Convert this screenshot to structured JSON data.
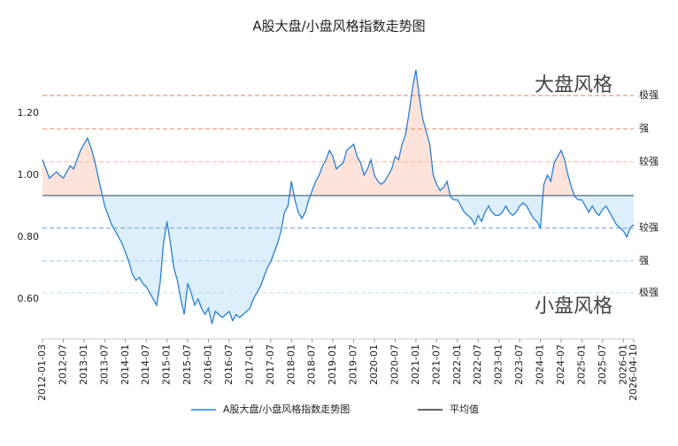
{
  "chart_data": {
    "type": "line",
    "title": "A股大盘/小盘风格指数走势图",
    "categories": [
      "2012-01-03",
      null,
      null,
      null,
      null,
      null,
      "2012-07",
      null,
      null,
      null,
      null,
      null,
      "2013-01",
      null,
      null,
      null,
      null,
      null,
      "2013-07",
      null,
      null,
      null,
      null,
      null,
      "2014-01",
      null,
      null,
      null,
      null,
      null,
      "2014-07",
      null,
      null,
      null,
      null,
      null,
      "2015-01",
      null,
      null,
      null,
      null,
      null,
      "2015-07",
      null,
      null,
      null,
      null,
      null,
      "2016-01",
      null,
      null,
      null,
      null,
      null,
      "2016-07",
      null,
      null,
      null,
      null,
      null,
      "2017-01",
      null,
      null,
      null,
      null,
      null,
      "2017-07",
      null,
      null,
      null,
      null,
      null,
      "2018-01",
      null,
      null,
      null,
      null,
      null,
      "2018-07",
      null,
      null,
      null,
      null,
      null,
      "2019-01",
      null,
      null,
      null,
      null,
      null,
      "2019-07",
      null,
      null,
      null,
      null,
      null,
      "2020-01",
      null,
      null,
      null,
      null,
      null,
      "2020-07",
      null,
      null,
      null,
      null,
      null,
      "2021-01",
      null,
      null,
      null,
      null,
      null,
      "2021-07",
      null,
      null,
      null,
      null,
      null,
      "2022-01",
      null,
      null,
      null,
      null,
      null,
      "2022-07",
      null,
      null,
      null,
      null,
      null,
      "2023-01",
      null,
      null,
      null,
      null,
      null,
      "2023-07",
      null,
      null,
      null,
      null,
      null,
      "2024-01",
      null,
      null,
      null,
      null,
      null,
      "2024-07",
      null,
      null,
      null,
      null,
      null,
      "2025-01",
      null,
      null,
      null,
      null,
      null,
      "2025-07",
      null,
      null,
      null,
      null,
      null,
      "2026-01",
      null,
      null,
      "2026-04-10"
    ],
    "series": [
      {
        "name": "A股大盘/小盘风格指数走势图",
        "color": "#2a7fd4",
        "values": [
          1.05,
          1.02,
          0.99,
          1.0,
          1.01,
          1.0,
          0.99,
          1.01,
          1.03,
          1.02,
          1.05,
          1.08,
          1.1,
          1.12,
          1.09,
          1.05,
          1.0,
          0.95,
          0.9,
          0.87,
          0.84,
          0.82,
          0.8,
          0.78,
          0.75,
          0.72,
          0.68,
          0.66,
          0.67,
          0.65,
          0.64,
          0.62,
          0.6,
          0.58,
          0.65,
          0.78,
          0.85,
          0.78,
          0.7,
          0.66,
          0.6,
          0.55,
          0.65,
          0.62,
          0.58,
          0.6,
          0.57,
          0.55,
          0.57,
          0.52,
          0.56,
          0.55,
          0.54,
          0.55,
          0.56,
          0.53,
          0.55,
          0.54,
          0.55,
          0.56,
          0.57,
          0.6,
          0.62,
          0.64,
          0.67,
          0.7,
          0.72,
          0.75,
          0.78,
          0.82,
          0.88,
          0.9,
          0.98,
          0.92,
          0.88,
          0.86,
          0.88,
          0.92,
          0.95,
          0.98,
          1.0,
          1.03,
          1.05,
          1.08,
          1.06,
          1.02,
          1.03,
          1.04,
          1.08,
          1.09,
          1.1,
          1.06,
          1.04,
          1.0,
          1.02,
          1.05,
          1.0,
          0.98,
          0.97,
          0.98,
          1.0,
          1.02,
          1.06,
          1.05,
          1.1,
          1.13,
          1.2,
          1.28,
          1.34,
          1.25,
          1.18,
          1.14,
          1.1,
          1.0,
          0.97,
          0.95,
          0.96,
          0.98,
          0.93,
          0.92,
          0.92,
          0.9,
          0.88,
          0.87,
          0.86,
          0.84,
          0.87,
          0.85,
          0.88,
          0.9,
          0.88,
          0.87,
          0.87,
          0.88,
          0.9,
          0.88,
          0.87,
          0.88,
          0.9,
          0.91,
          0.9,
          0.88,
          0.86,
          0.85,
          0.83,
          0.97,
          1.0,
          0.98,
          1.04,
          1.06,
          1.08,
          1.05,
          1.0,
          0.96,
          0.93,
          0.92,
          0.92,
          0.9,
          0.88,
          0.9,
          0.88,
          0.87,
          0.89,
          0.9,
          0.88,
          0.86,
          0.84,
          0.83,
          0.82,
          0.8,
          0.83,
          0.84
        ]
      }
    ],
    "mean": {
      "name": "平均值",
      "value": 0.934,
      "color": "#4d6a80"
    },
    "reference_lines": [
      {
        "value": 1.257,
        "label": "极强",
        "color": "#e28d72"
      },
      {
        "value": 1.149,
        "label": "强",
        "color": "#eba38c"
      },
      {
        "value": 1.043,
        "label": "较强",
        "color": "#f2bfae"
      },
      {
        "value": 0.829,
        "label": "较强",
        "color": "#87add0"
      },
      {
        "value": 0.723,
        "label": "强",
        "color": "#a9cde6"
      },
      {
        "value": 0.62,
        "label": "极强",
        "color": "#c9e2f2"
      }
    ],
    "above_fill": "#fde3da",
    "below_fill": "#dceffb",
    "annotations": [
      "大盘风格",
      "小盘风格"
    ],
    "ylim": [
      0.471,
      1.394
    ],
    "yticks": [
      {
        "value": 0.6,
        "label": "0.60"
      },
      {
        "value": 0.8,
        "label": "0.80"
      },
      {
        "value": 1.0,
        "label": "1.00"
      },
      {
        "value": 1.2,
        "label": "1.20"
      }
    ],
    "grid": false
  }
}
